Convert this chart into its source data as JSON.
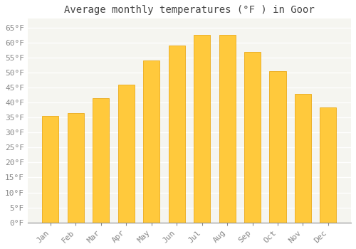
{
  "title": "Average monthly temperatures (°F ) in Goor",
  "months": [
    "Jan",
    "Feb",
    "Mar",
    "Apr",
    "May",
    "Jun",
    "Jul",
    "Aug",
    "Sep",
    "Oct",
    "Nov",
    "Dec"
  ],
  "values": [
    35.5,
    36.5,
    41.5,
    46.0,
    54.0,
    59.0,
    62.5,
    62.5,
    57.0,
    50.5,
    43.0,
    38.5
  ],
  "bar_color_top": "#FFC93C",
  "bar_color_bottom": "#FFA500",
  "bar_edge_color": "#E8A000",
  "background_color": "#FFFFFF",
  "plot_bg_color": "#F5F5F0",
  "grid_color": "#FFFFFF",
  "text_color": "#888888",
  "title_color": "#444444",
  "bottom_spine_color": "#888888",
  "ylim": [
    0,
    68
  ],
  "yticks": [
    0,
    5,
    10,
    15,
    20,
    25,
    30,
    35,
    40,
    45,
    50,
    55,
    60,
    65
  ],
  "title_fontsize": 10,
  "tick_fontsize": 8
}
